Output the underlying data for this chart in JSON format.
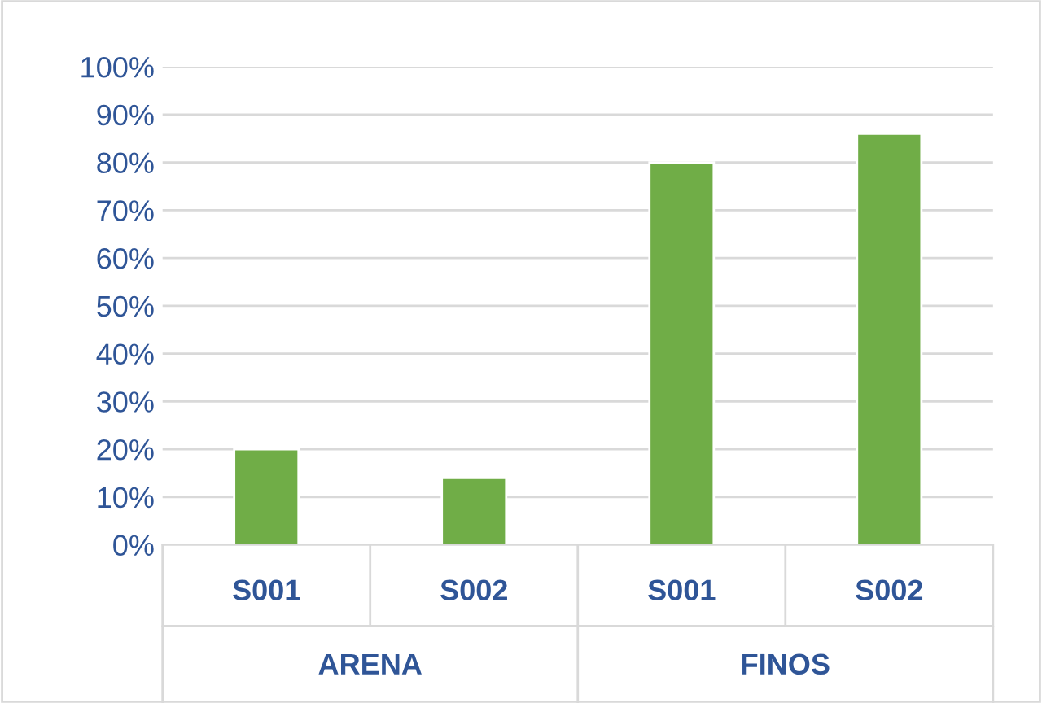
{
  "chart_data": {
    "type": "bar",
    "categories": [
      "S001",
      "S002",
      "S001",
      "S002"
    ],
    "values": [
      20,
      14,
      80,
      86
    ],
    "color": "#70ad47",
    "ylim": [
      0,
      100
    ],
    "yticks": [
      {
        "value": 0,
        "label": "0%"
      },
      {
        "value": 10,
        "label": "10%"
      },
      {
        "value": 20,
        "label": "20%"
      },
      {
        "value": 30,
        "label": "30%"
      },
      {
        "value": 40,
        "label": "40%"
      },
      {
        "value": 50,
        "label": "50%"
      },
      {
        "value": 60,
        "label": "60%"
      },
      {
        "value": 70,
        "label": "70%"
      },
      {
        "value": 80,
        "label": "80%"
      },
      {
        "value": 90,
        "label": "90%"
      },
      {
        "value": 100,
        "label": "100%"
      }
    ],
    "annotations": [
      "ARENA",
      "FINOS"
    ],
    "grid": "y"
  }
}
